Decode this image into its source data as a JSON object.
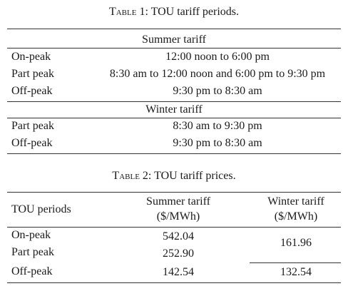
{
  "table1": {
    "caption_prefix": "Table 1:",
    "caption_text": " TOU tariff periods.",
    "summer_header": "Summer tariff",
    "summer_rows": [
      {
        "period": "On-peak",
        "time": "12:00 noon to 6:00 pm"
      },
      {
        "period": "Part peak",
        "time": "8:30 am to 12:00 noon and 6:00 pm to 9:30 pm"
      },
      {
        "period": "Off-peak",
        "time": "9:30 pm to 8:30 am"
      }
    ],
    "winter_header": "Winter tariff",
    "winter_rows": [
      {
        "period": "Part peak",
        "time": "8:30 am to 9:30 pm"
      },
      {
        "period": "Off-peak",
        "time": "9:30 pm to 8:30 am"
      }
    ]
  },
  "table2": {
    "caption_prefix": "Table 2:",
    "caption_text": " TOU tariff prices.",
    "col1_header": "TOU periods",
    "col2_header_line1": "Summer tariff",
    "col2_header_line2": "($/MWh)",
    "col3_header_line1": "Winter tariff",
    "col3_header_line2": "($/MWh)",
    "rows": [
      {
        "period": "On-peak",
        "summer": "542.04"
      },
      {
        "period": "Part peak",
        "summer": "252.90"
      },
      {
        "period": "Off-peak",
        "summer": "142.54",
        "winter": "132.54"
      }
    ],
    "winter_merged": "161.96"
  }
}
